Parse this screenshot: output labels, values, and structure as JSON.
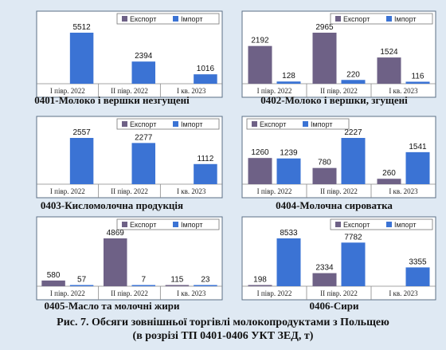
{
  "colors": {
    "export": "#6e6186",
    "import": "#3b73d4",
    "background": "#dfe9f3",
    "frame": "#5b6f86"
  },
  "legend": {
    "export": "Експорт",
    "import": "Імпорт"
  },
  "charts": [
    {
      "caption": "0401-Молоко і вершки незгущені",
      "chart_data": {
        "type": "bar",
        "categories": [
          "I півр. 2022",
          "II півр. 2022",
          "I кв. 2023"
        ],
        "series": [
          {
            "name": "Експорт",
            "values": [
              null,
              null,
              null
            ]
          },
          {
            "name": "Імпорт",
            "values": [
              5512,
              2394,
              1016
            ]
          }
        ],
        "legend": "top-right"
      }
    },
    {
      "caption": "0402-Молоко і вершки, згущені",
      "chart_data": {
        "type": "bar",
        "categories": [
          "I півр. 2022",
          "II півр. 2022",
          "I кв. 2023"
        ],
        "series": [
          {
            "name": "Експорт",
            "values": [
              2192,
              2965,
              1524
            ]
          },
          {
            "name": "Імпорт",
            "values": [
              128,
              220,
              116
            ]
          }
        ],
        "legend": "top-right"
      }
    },
    {
      "caption": "0403-Кисломолочна продукція",
      "chart_data": {
        "type": "bar",
        "categories": [
          "I півр. 2022",
          "II півр. 2022",
          "I кв. 2023"
        ],
        "series": [
          {
            "name": "Експорт",
            "values": [
              null,
              null,
              null
            ]
          },
          {
            "name": "Імпорт",
            "values": [
              2557,
              2277,
              1112
            ]
          }
        ],
        "legend": "top-right"
      }
    },
    {
      "caption": "0404-Молочна сироватка",
      "chart_data": {
        "type": "bar",
        "categories": [
          "I півр. 2022",
          "II півр. 2022",
          "I кв. 2023"
        ],
        "series": [
          {
            "name": "Експорт",
            "values": [
              1260,
              780,
              260
            ]
          },
          {
            "name": "Імпорт",
            "values": [
              1239,
              2227,
              1541
            ]
          }
        ],
        "legend": "top-left"
      }
    },
    {
      "caption": "0405-Масло та молочні жири",
      "chart_data": {
        "type": "bar",
        "categories": [
          "I півр. 2022",
          "II півр. 2022",
          "I кв. 2023"
        ],
        "series": [
          {
            "name": "Експорт",
            "values": [
              580,
              4869,
              115
            ]
          },
          {
            "name": "Імпорт",
            "values": [
              57,
              7,
              23
            ]
          }
        ],
        "legend": "top-right"
      }
    },
    {
      "caption": "0406-Сири",
      "chart_data": {
        "type": "bar",
        "categories": [
          "I півр. 2022",
          "II півр. 2022",
          "I кв. 2023"
        ],
        "series": [
          {
            "name": "Експорт",
            "values": [
              198,
              2334,
              null
            ]
          },
          {
            "name": "Імпорт",
            "values": [
              8533,
              7782,
              3355
            ]
          }
        ],
        "legend": "top-right"
      }
    }
  ],
  "figure_title_line1": "Рис. 7. Обсяги зовнішньої торгівлі молокопродуктами з Польщею",
  "figure_title_line2": "(в розрізі ТП 0401-0406 УКТ ЗЕД, т)"
}
